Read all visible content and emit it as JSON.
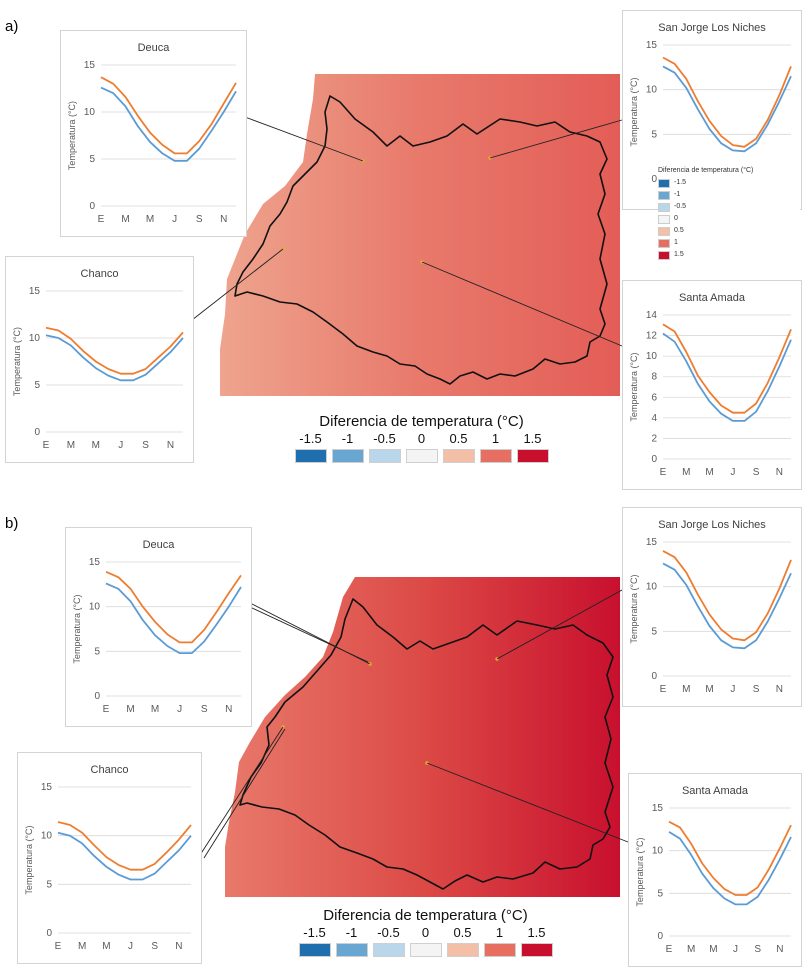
{
  "panels": [
    {
      "label": "a)",
      "map": {
        "legend_title": "Diferencia de temperatura (°C)",
        "legend": [
          {
            "label": "-1.5",
            "color": "#1f6fae"
          },
          {
            "label": "-1",
            "color": "#6aa6d2"
          },
          {
            "label": "-0.5",
            "color": "#b9d6ea"
          },
          {
            "label": "0",
            "color": "#f4f4f4"
          },
          {
            "label": "0.5",
            "color": "#f4bfa7"
          },
          {
            "label": "1",
            "color": "#e66f61"
          },
          {
            "label": "1.5",
            "color": "#c8102e"
          }
        ],
        "gradient": [
          "#eea48e",
          "#e8796b",
          "#e35d57"
        ]
      },
      "mini_legend": {
        "title": "Diferencia de temperatura (°C)",
        "items": [
          {
            "label": "-1.5",
            "color": "#1f6fae"
          },
          {
            "label": "-1",
            "color": "#6aa6d2"
          },
          {
            "label": "-0.5",
            "color": "#b9d6ea"
          },
          {
            "label": "0",
            "color": "#f4f4f4"
          },
          {
            "label": "0.5",
            "color": "#f4bfa7"
          },
          {
            "label": "1",
            "color": "#e66f61"
          },
          {
            "label": "1.5",
            "color": "#c8102e"
          }
        ]
      }
    },
    {
      "label": "b)",
      "map": {
        "legend_title": "Diferencia de temperatura (°C)",
        "legend": [
          {
            "label": "-1.5",
            "color": "#1f6fae"
          },
          {
            "label": "-1",
            "color": "#6aa6d2"
          },
          {
            "label": "-0.5",
            "color": "#b9d6ea"
          },
          {
            "label": "0",
            "color": "#f4f4f4"
          },
          {
            "label": "0.5",
            "color": "#f4bfa7"
          },
          {
            "label": "1",
            "color": "#e66f61"
          },
          {
            "label": "1.5",
            "color": "#c8102e"
          }
        ],
        "gradient": [
          "#e8796b",
          "#dc4a46",
          "#c8102e"
        ]
      }
    }
  ],
  "chart_data": [
    {
      "type": "line",
      "panel": "a",
      "title": "Deuca",
      "ylabel": "Temperatura (°C)",
      "categories": [
        "E",
        "M",
        "M",
        "J",
        "S",
        "N"
      ],
      "x": [
        1,
        2,
        3,
        4,
        5,
        6,
        7,
        8,
        9,
        10,
        11,
        12
      ],
      "xticks": [
        1,
        3,
        5,
        7,
        9,
        11
      ],
      "ylim": [
        0,
        15
      ],
      "yticks": [
        0,
        5,
        10,
        15
      ],
      "series": [
        {
          "color": "#ed7d31",
          "values": [
            13.7,
            13.0,
            11.6,
            9.6,
            7.8,
            6.5,
            5.6,
            5.6,
            6.9,
            8.7,
            10.9,
            13.1
          ]
        },
        {
          "color": "#5b9bd5",
          "values": [
            12.6,
            12.0,
            10.6,
            8.5,
            6.8,
            5.6,
            4.8,
            4.8,
            6.1,
            8.0,
            10.0,
            12.2
          ]
        }
      ]
    },
    {
      "type": "line",
      "panel": "a",
      "title": "Chanco",
      "ylabel": "Temperatura (°C)",
      "categories": [
        "E",
        "M",
        "M",
        "J",
        "S",
        "N"
      ],
      "x": [
        1,
        2,
        3,
        4,
        5,
        6,
        7,
        8,
        9,
        10,
        11,
        12
      ],
      "xticks": [
        1,
        3,
        5,
        7,
        9,
        11
      ],
      "ylim": [
        0,
        15
      ],
      "yticks": [
        0,
        5,
        10,
        15
      ],
      "series": [
        {
          "color": "#ed7d31",
          "values": [
            11.1,
            10.8,
            9.9,
            8.6,
            7.5,
            6.7,
            6.2,
            6.2,
            6.7,
            7.9,
            9.1,
            10.6
          ]
        },
        {
          "color": "#5b9bd5",
          "values": [
            10.3,
            10.0,
            9.2,
            7.9,
            6.8,
            6.0,
            5.5,
            5.5,
            6.1,
            7.3,
            8.5,
            10.0
          ]
        }
      ]
    },
    {
      "type": "line",
      "panel": "a",
      "title": "San Jorge Los Niches",
      "ylabel": "Temperatura (°C)",
      "categories": [
        "E",
        "M",
        "M",
        "J",
        "S",
        "N"
      ],
      "x": [
        1,
        2,
        3,
        4,
        5,
        6,
        7,
        8,
        9,
        10,
        11,
        12
      ],
      "xticks": [
        1,
        3,
        5,
        7,
        9,
        11
      ],
      "ylim": [
        0,
        15
      ],
      "yticks": [
        0,
        5,
        10,
        15
      ],
      "series": [
        {
          "color": "#ed7d31",
          "values": [
            13.6,
            12.9,
            11.2,
            8.7,
            6.5,
            4.8,
            3.8,
            3.6,
            4.5,
            6.6,
            9.4,
            12.6
          ]
        },
        {
          "color": "#5b9bd5",
          "values": [
            12.6,
            11.9,
            10.2,
            7.8,
            5.6,
            4.0,
            3.2,
            3.1,
            4.0,
            6.1,
            8.7,
            11.5
          ]
        }
      ]
    },
    {
      "type": "line",
      "panel": "a",
      "title": "Santa Amada",
      "ylabel": "Temperatura (°C)",
      "categories": [
        "E",
        "M",
        "M",
        "J",
        "S",
        "N"
      ],
      "x": [
        1,
        2,
        3,
        4,
        5,
        6,
        7,
        8,
        9,
        10,
        11,
        12
      ],
      "xticks": [
        1,
        3,
        5,
        7,
        9,
        11
      ],
      "ylim": [
        0,
        14
      ],
      "yticks": [
        0,
        2,
        4,
        6,
        8,
        10,
        12,
        14
      ],
      "series": [
        {
          "color": "#ed7d31",
          "values": [
            13.1,
            12.4,
            10.4,
            8.1,
            6.5,
            5.2,
            4.5,
            4.5,
            5.4,
            7.4,
            9.9,
            12.6
          ]
        },
        {
          "color": "#5b9bd5",
          "values": [
            12.2,
            11.4,
            9.5,
            7.3,
            5.6,
            4.4,
            3.7,
            3.7,
            4.6,
            6.6,
            9.0,
            11.6
          ]
        }
      ]
    },
    {
      "type": "line",
      "panel": "b",
      "title": "Deuca",
      "ylabel": "Temperatura (°C)",
      "categories": [
        "E",
        "M",
        "M",
        "J",
        "S",
        "N"
      ],
      "x": [
        1,
        2,
        3,
        4,
        5,
        6,
        7,
        8,
        9,
        10,
        11,
        12
      ],
      "xticks": [
        1,
        3,
        5,
        7,
        9,
        11
      ],
      "ylim": [
        0,
        15
      ],
      "yticks": [
        0,
        5,
        10,
        15
      ],
      "series": [
        {
          "color": "#ed7d31",
          "values": [
            13.9,
            13.3,
            12.0,
            10.0,
            8.3,
            6.9,
            6.0,
            6.0,
            7.4,
            9.4,
            11.5,
            13.5
          ]
        },
        {
          "color": "#5b9bd5",
          "values": [
            12.6,
            12.0,
            10.6,
            8.5,
            6.8,
            5.6,
            4.8,
            4.8,
            6.1,
            8.0,
            10.0,
            12.2
          ]
        }
      ]
    },
    {
      "type": "line",
      "panel": "b",
      "title": "Chanco",
      "ylabel": "Temperatura (°C)",
      "categories": [
        "E",
        "M",
        "M",
        "J",
        "S",
        "N"
      ],
      "x": [
        1,
        2,
        3,
        4,
        5,
        6,
        7,
        8,
        9,
        10,
        11,
        12
      ],
      "xticks": [
        1,
        3,
        5,
        7,
        9,
        11
      ],
      "ylim": [
        0,
        15
      ],
      "yticks": [
        0,
        5,
        10,
        15
      ],
      "series": [
        {
          "color": "#ed7d31",
          "values": [
            11.4,
            11.1,
            10.3,
            9.0,
            7.8,
            7.0,
            6.5,
            6.5,
            7.1,
            8.3,
            9.6,
            11.1
          ]
        },
        {
          "color": "#5b9bd5",
          "values": [
            10.3,
            10.0,
            9.2,
            7.9,
            6.8,
            6.0,
            5.5,
            5.5,
            6.1,
            7.3,
            8.5,
            10.0
          ]
        }
      ]
    },
    {
      "type": "line",
      "panel": "b",
      "title": "San Jorge Los Niches",
      "ylabel": "Temperatura (°C)",
      "categories": [
        "E",
        "M",
        "M",
        "J",
        "S",
        "N"
      ],
      "x": [
        1,
        2,
        3,
        4,
        5,
        6,
        7,
        8,
        9,
        10,
        11,
        12
      ],
      "xticks": [
        1,
        3,
        5,
        7,
        9,
        11
      ],
      "ylim": [
        0,
        15
      ],
      "yticks": [
        0,
        5,
        10,
        15
      ],
      "series": [
        {
          "color": "#ed7d31",
          "values": [
            14.0,
            13.3,
            11.6,
            9.1,
            6.9,
            5.2,
            4.2,
            4.0,
            4.9,
            7.0,
            9.8,
            13.0
          ]
        },
        {
          "color": "#5b9bd5",
          "values": [
            12.6,
            11.9,
            10.2,
            7.8,
            5.6,
            4.0,
            3.2,
            3.1,
            4.0,
            6.1,
            8.7,
            11.5
          ]
        }
      ]
    },
    {
      "type": "line",
      "panel": "b",
      "title": "Santa Amada",
      "ylabel": "Temperatura (°C)",
      "categories": [
        "E",
        "M",
        "M",
        "J",
        "S",
        "N"
      ],
      "x": [
        1,
        2,
        3,
        4,
        5,
        6,
        7,
        8,
        9,
        10,
        11,
        12
      ],
      "xticks": [
        1,
        3,
        5,
        7,
        9,
        11
      ],
      "ylim": [
        0,
        15
      ],
      "yticks": [
        0,
        5,
        10,
        15
      ],
      "series": [
        {
          "color": "#ed7d31",
          "values": [
            13.4,
            12.7,
            10.8,
            8.5,
            6.8,
            5.5,
            4.8,
            4.8,
            5.7,
            7.8,
            10.3,
            13.0
          ]
        },
        {
          "color": "#5b9bd5",
          "values": [
            12.2,
            11.4,
            9.5,
            7.3,
            5.6,
            4.4,
            3.7,
            3.7,
            4.6,
            6.6,
            9.0,
            11.6
          ]
        }
      ]
    }
  ]
}
